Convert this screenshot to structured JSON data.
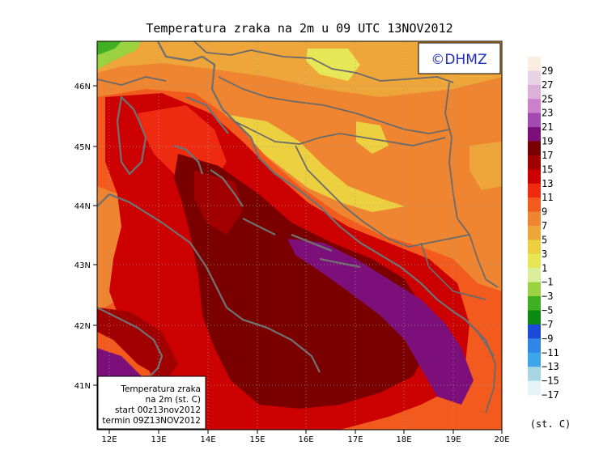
{
  "title": "Temperatura zraka na 2m u 09 UTC 13NOV2012",
  "logo_text": "©DHMZ",
  "info_box": {
    "line1": "Temperatura zraka",
    "line2": "na 2m (st. C)",
    "line3": "start 00z13nov2012",
    "line4": "termin 09Z13NOV2012"
  },
  "lon_labels": [
    "12E",
    "13E",
    "14E",
    "15E",
    "16E",
    "17E",
    "18E",
    "19E",
    "20E"
  ],
  "lat_labels": [
    "46N",
    "45N",
    "44N",
    "43N",
    "42N",
    "41N"
  ],
  "colorbar": {
    "unit": "(st. C)",
    "labels": [
      "29",
      "27",
      "25",
      "23",
      "21",
      "19",
      "17",
      "15",
      "13",
      "11",
      "9",
      "7",
      "5",
      "3",
      "1",
      "−1",
      "−3",
      "−5",
      "−7",
      "−9",
      "−11",
      "−13",
      "−15",
      "−17"
    ],
    "colors": [
      "#fbeee0",
      "#e8d2e6",
      "#dcb0d8",
      "#cc7fcb",
      "#a34ab0",
      "#7d0f7b",
      "#7a0000",
      "#a00000",
      "#cc0000",
      "#ee2a10",
      "#f25a1e",
      "#ef8530",
      "#eea63a",
      "#ecd040",
      "#e7e657",
      "#d9ef9e",
      "#9ad241",
      "#3fb021",
      "#0a8a10",
      "#1b4ad8",
      "#2f86e6",
      "#3ea6e8",
      "#a7d5e4",
      "#e6f4f7"
    ]
  },
  "chart_data": {
    "type": "heatmap",
    "title": "Temperatura zraka na 2m u 09 UTC 13NOV2012",
    "x_ticks": [
      "12E",
      "13E",
      "14E",
      "15E",
      "16E",
      "17E",
      "18E",
      "19E",
      "20E"
    ],
    "y_ticks": [
      "46N",
      "45N",
      "44N",
      "43N",
      "42N",
      "41N"
    ],
    "xlim_deg": [
      11.7,
      20.0
    ],
    "ylim_deg": [
      40.3,
      46.7
    ],
    "value_range": [
      -17,
      29
    ],
    "unit": "(st. C)",
    "grid": "dotted"
  }
}
